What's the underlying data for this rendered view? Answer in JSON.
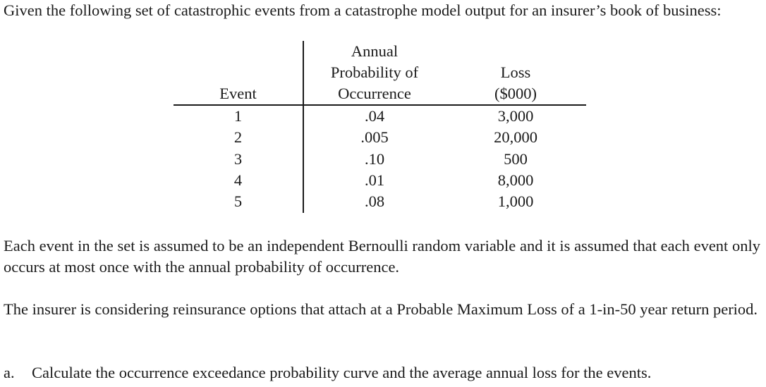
{
  "intro": "Given the following set of catastrophic events from a catastrophe model output for an insurer’s book of business:",
  "table": {
    "headers": {
      "event": "Event",
      "probability": [
        "Annual",
        "Probability of",
        "Occurrence"
      ],
      "loss": [
        "Loss",
        "($000)"
      ]
    },
    "rows": [
      {
        "event": "1",
        "probability": ".04",
        "loss": "3,000"
      },
      {
        "event": "2",
        "probability": ".005",
        "loss": "20,000"
      },
      {
        "event": "3",
        "probability": ".10",
        "loss": "500"
      },
      {
        "event": "4",
        "probability": ".01",
        "loss": "8,000"
      },
      {
        "event": "5",
        "probability": ".08",
        "loss": "1,000"
      }
    ]
  },
  "bernoulli_text": "Each event in the set is assumed to be an independent Bernoulli random variable and it is assumed that each event only occurs at most once with the annual probability of occurrence.",
  "reinsurance_text": "The insurer is considering reinsurance options that attach at a Probable Maximum Loss of a 1-in-50 year return period.",
  "question": {
    "label": "a.",
    "text": "Calculate the occurrence exceedance probability curve and the average annual loss for the events."
  }
}
